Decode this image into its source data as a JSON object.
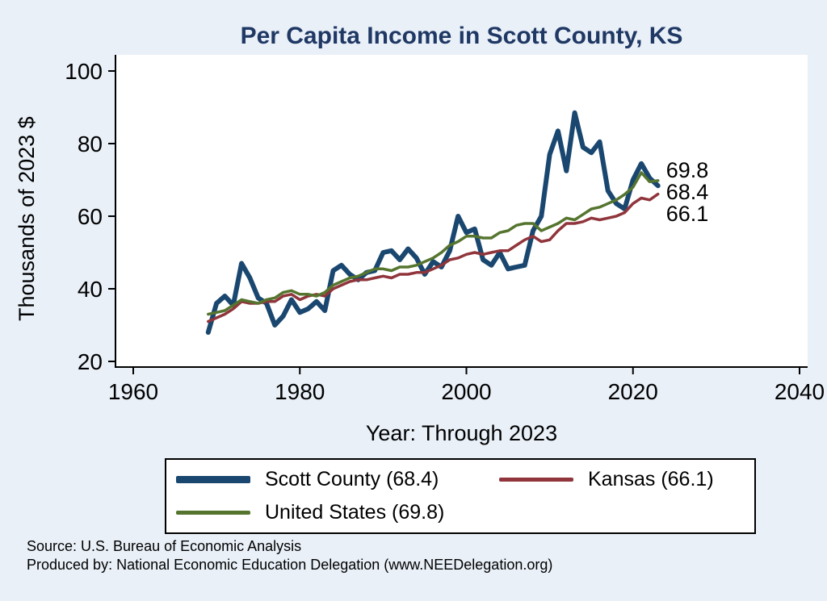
{
  "chart_data": {
    "type": "line",
    "title": "Per Capita Income in Scott County, KS",
    "xlabel": "Year: Through 2023",
    "ylabel": "Thousands of 2023 $",
    "xlim": [
      1960,
      2040
    ],
    "ylim": [
      20,
      100
    ],
    "xticks": [
      1960,
      1980,
      2000,
      2020,
      2040
    ],
    "yticks": [
      20,
      40,
      60,
      80,
      100
    ],
    "grid": "off",
    "legend_position": "bottom",
    "start_year": 1969,
    "end_year": 2023,
    "series": [
      {
        "name": "Scott County",
        "color": "#1A476F",
        "stroke_width": 6,
        "values": [
          28,
          36,
          38,
          35.5,
          47,
          43,
          37.5,
          36,
          30,
          32.5,
          37,
          33.5,
          34.5,
          36.5,
          34,
          45,
          46.5,
          44,
          42.5,
          44.5,
          45,
          50,
          50.5,
          48,
          51,
          48.5,
          44,
          47.5,
          46,
          50.5,
          60,
          55.5,
          56.5,
          48,
          46.5,
          50,
          45.5,
          46,
          46.5,
          56,
          60,
          77,
          83.5,
          72.5,
          88.5,
          79,
          77.5,
          80.5,
          67,
          63.5,
          62,
          70,
          74.5,
          70.5,
          68.4
        ]
      },
      {
        "name": "Kansas",
        "color": "#90353B",
        "stroke_width": 3.5,
        "values": [
          31,
          32,
          33,
          34.5,
          36.5,
          36,
          36,
          36.5,
          36.5,
          38,
          38.5,
          37,
          38,
          38.5,
          38,
          40,
          41,
          42,
          42.5,
          42.5,
          43,
          43.5,
          43,
          44,
          44,
          44.5,
          44.5,
          45.5,
          46.5,
          48,
          48.5,
          49.5,
          50,
          49.5,
          50,
          50.5,
          50.5,
          52,
          53.5,
          54.5,
          53,
          53.5,
          56,
          58,
          58,
          58.5,
          59.5,
          59,
          59.5,
          60,
          61,
          63.5,
          65,
          64.5,
          66.1
        ]
      },
      {
        "name": "United States",
        "color": "#55752F",
        "stroke_width": 3.5,
        "values": [
          33,
          33.5,
          34,
          35.5,
          37,
          36.5,
          36,
          37,
          37.5,
          39,
          39.5,
          38.5,
          38.5,
          38,
          39,
          41,
          42,
          43,
          43.5,
          44.5,
          45.5,
          45.5,
          45,
          46,
          46,
          46.5,
          47.5,
          48.5,
          50,
          52,
          53,
          54.5,
          54.5,
          54,
          54,
          55.5,
          56,
          57.5,
          58,
          58,
          56,
          57,
          58,
          59.5,
          59,
          60.5,
          62,
          62.5,
          63.5,
          64.5,
          66,
          68,
          72,
          69.5,
          69.8
        ]
      }
    ],
    "end_labels": [
      "69.8",
      "68.4",
      "66.1"
    ]
  },
  "legend": {
    "items": [
      {
        "label": "Scott County (68.4)"
      },
      {
        "label": "Kansas (66.1)"
      },
      {
        "label": "United States (69.8)"
      }
    ]
  },
  "footer": {
    "line1": "Source: U.S. Bureau of Economic Analysis",
    "line2": "Produced by: National Economic Education Delegation (www.NEEDelegation.org)"
  },
  "colors": {
    "background": "#e9f0f8",
    "plot_background": "#ffffff",
    "title": "#1f3864",
    "axis": "#000000"
  }
}
